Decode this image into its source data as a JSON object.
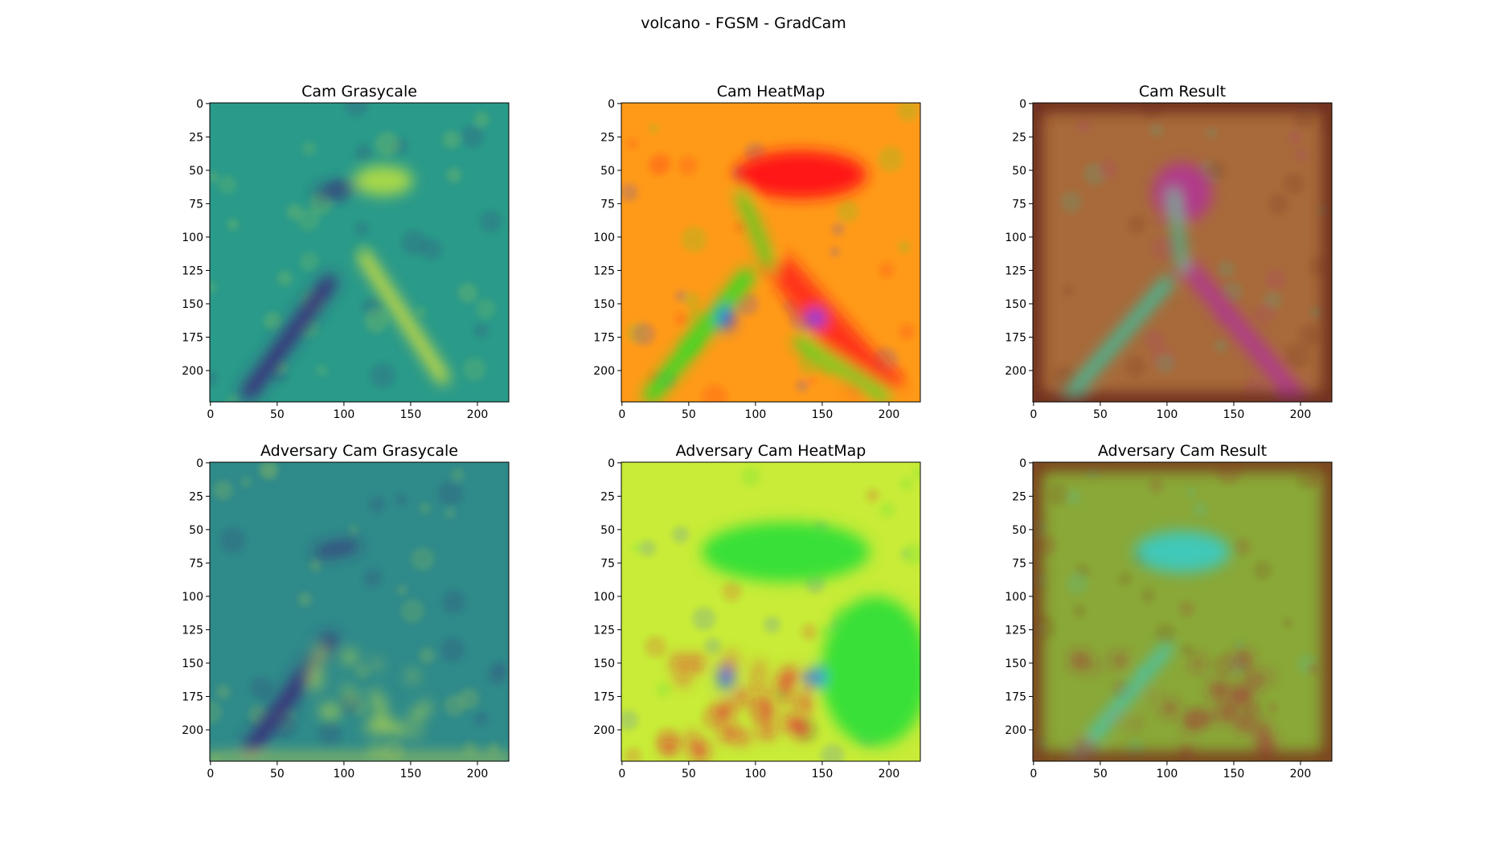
{
  "figure": {
    "title": "volcano - FGSM - GradCam"
  },
  "panels": [
    {
      "title": "Cam Grasycale",
      "colormap": "viridis",
      "background_color": "#2a9a8a",
      "features": [
        {
          "kind": "dark_streak",
          "color": "#3b2a7a"
        },
        {
          "kind": "bright_streak",
          "color": "#d8e23a"
        },
        {
          "kind": "bright_blob",
          "color": "#a8d84a"
        }
      ]
    },
    {
      "title": "Cam HeatMap",
      "colormap": "hsv",
      "background_color": "#ff9a18",
      "features": [
        {
          "kind": "hot_region",
          "color": "#ff1818"
        },
        {
          "kind": "cool_ridge",
          "color": "#28e028"
        },
        {
          "kind": "cold_spot",
          "color": "#2a3aff"
        }
      ]
    },
    {
      "title": "Cam Result",
      "colormap": "hsv_overlay",
      "background_color": "#a86a3a",
      "features": [
        {
          "kind": "magenta_region",
          "color": "#b03a8a"
        },
        {
          "kind": "cyan_ridge",
          "color": "#3ac0a0"
        },
        {
          "kind": "dark_border",
          "color": "#6a2a1a"
        }
      ]
    },
    {
      "title": "Adversary Cam Grasycale",
      "colormap": "viridis",
      "background_color": "#2f8a8a",
      "features": [
        {
          "kind": "dark_streak",
          "color": "#3a2a78"
        },
        {
          "kind": "bright_dots",
          "color": "#b8d848"
        },
        {
          "kind": "bright_edge",
          "color": "#d8e040"
        }
      ]
    },
    {
      "title": "Adversary Cam HeatMap",
      "colormap": "hsv",
      "background_color": "#c8ec38",
      "features": [
        {
          "kind": "green_region",
          "color": "#38e038"
        },
        {
          "kind": "hot_spots",
          "color": "#e81838"
        },
        {
          "kind": "cold_spot",
          "color": "#2a5aff"
        }
      ]
    },
    {
      "title": "Adversary Cam Result",
      "colormap": "hsv_overlay",
      "background_color": "#8aa838",
      "features": [
        {
          "kind": "cyan_region",
          "color": "#40c8b8"
        },
        {
          "kind": "red_spots",
          "color": "#a8283a"
        },
        {
          "kind": "dark_border",
          "color": "#7a3a1a"
        }
      ]
    }
  ],
  "axes": {
    "x_ticks": [
      "0",
      "50",
      "100",
      "150",
      "200"
    ],
    "y_ticks": [
      "0",
      "25",
      "50",
      "75",
      "100",
      "125",
      "150",
      "175",
      "200"
    ]
  }
}
